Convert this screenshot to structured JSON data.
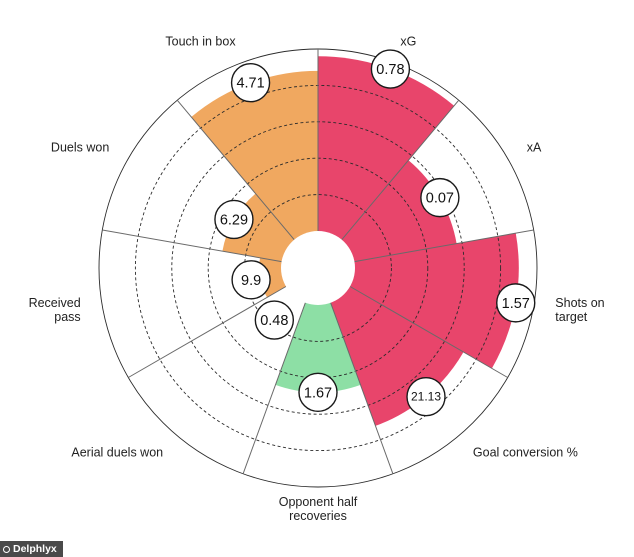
{
  "chart_data": {
    "type": "polar-area",
    "segments": [
      {
        "label": [
          "xG"
        ],
        "value": 0.78,
        "display": "0.78",
        "fill": 0.96,
        "color": "#e8456b"
      },
      {
        "label": [
          "xA"
        ],
        "value": 0.07,
        "display": "0.07",
        "fill": 0.57,
        "color": "#e8456b"
      },
      {
        "label": [
          "Shots on",
          "target"
        ],
        "value": 1.57,
        "display": "1.57",
        "fill": 0.9,
        "color": "#e8456b"
      },
      {
        "label": [
          "Goal conversion %"
        ],
        "value": 21.13,
        "display": "21.13",
        "fill": 0.72,
        "color": "#e8456b"
      },
      {
        "label": [
          "Opponent half",
          "recoveries"
        ],
        "value": 1.67,
        "display": "1.67",
        "fill": 0.48,
        "color": "#8ddfa5"
      },
      {
        "label": [
          "Aerial duels won"
        ],
        "value": 0.48,
        "display": "0.48",
        "fill": 0.0,
        "color": "#8ddfa5"
      },
      {
        "label": [
          "Received",
          "pass"
        ],
        "value": 9.9,
        "display": "9.9",
        "fill": 0.12,
        "color": "#f0a860"
      },
      {
        "label": [
          "Duels won"
        ],
        "value": 6.29,
        "display": "6.29",
        "fill": 0.33,
        "color": "#f0a860"
      },
      {
        "label": [
          "Touch in box"
        ],
        "value": 4.71,
        "display": "4.71",
        "fill": 0.88,
        "color": "#f0a860"
      }
    ]
  },
  "branding": {
    "text": "Delphlyx"
  }
}
